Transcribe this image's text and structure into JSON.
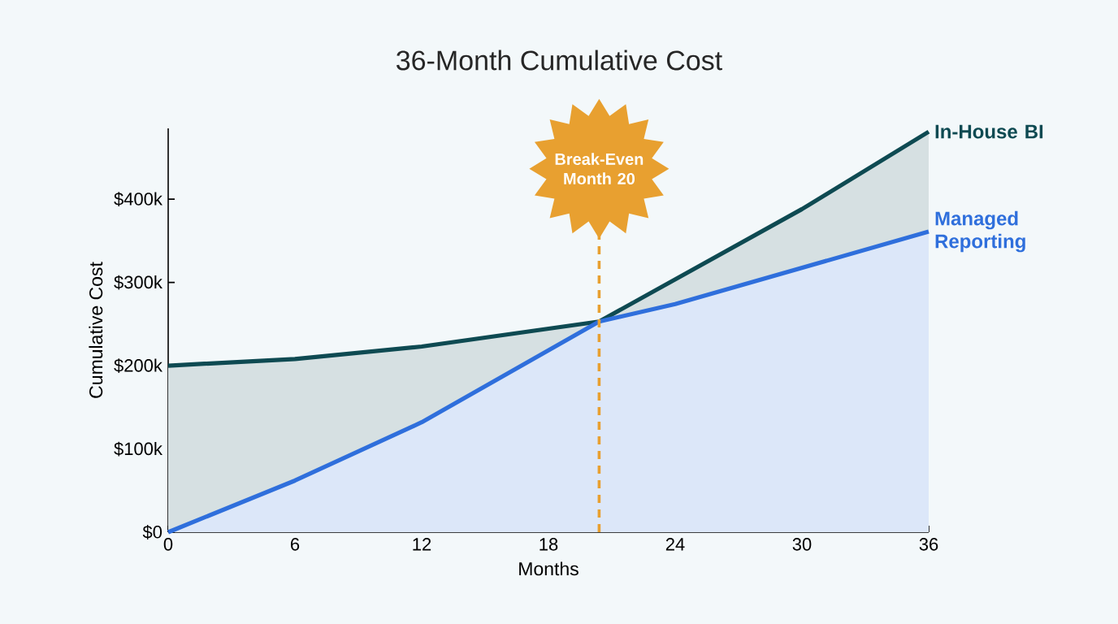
{
  "chart_data": {
    "type": "area",
    "title": "36-Month Cumulative Cost",
    "xlabel": "Months",
    "ylabel": "Cumulative Cost",
    "series": [
      {
        "name": "In-House BI",
        "color": "#0e4a52",
        "x": [
          0,
          6,
          12,
          20.4,
          30,
          36
        ],
        "values": [
          200000,
          208000,
          223000,
          253000,
          388000,
          481000
        ]
      },
      {
        "name": "Managed Reporting",
        "color": "#2f6fdc",
        "x": [
          0,
          6,
          12,
          20.4,
          24,
          36
        ],
        "values": [
          0,
          62000,
          132000,
          253000,
          274000,
          361000
        ]
      }
    ],
    "xlim": [
      0,
      36
    ],
    "ylim": [
      0,
      485000
    ],
    "xticks": [
      0,
      6,
      12,
      18,
      24,
      30,
      36
    ],
    "yticks": [
      {
        "value": 0,
        "label": "$0"
      },
      {
        "value": 100000,
        "label": "$100k"
      },
      {
        "value": 200000,
        "label": "$200k"
      },
      {
        "value": 300000,
        "label": "$300k"
      },
      {
        "value": 400000,
        "label": "$400k"
      }
    ],
    "ref_lines": [
      {
        "axis": "x",
        "value": 20.4,
        "label": "Break-Even Month 20",
        "color": "#e8a030",
        "line_style": "dashed"
      }
    ],
    "grid": false
  }
}
